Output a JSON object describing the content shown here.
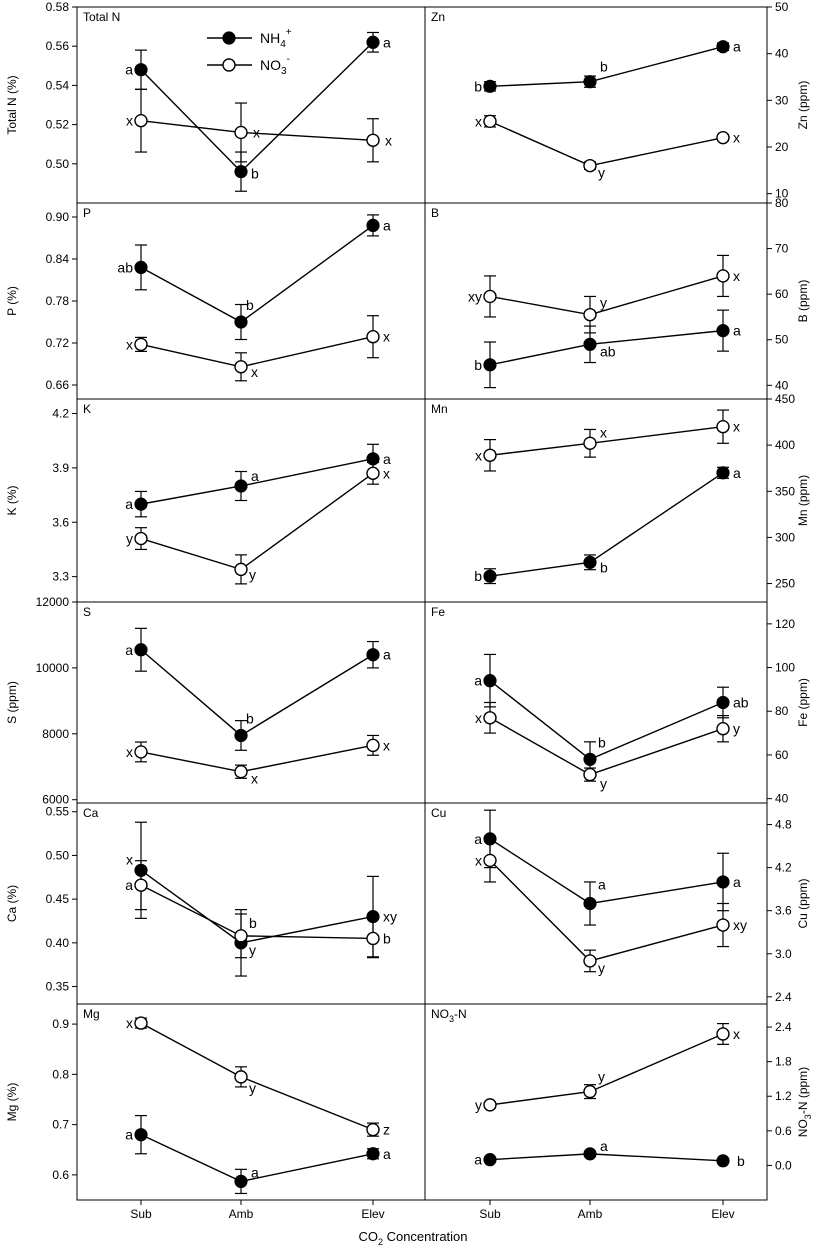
{
  "figure": {
    "xlabel_main": "CO",
    "xlabel_sub": "2",
    "xlabel_rest": " Concentration",
    "categories": [
      "Sub",
      "Amb",
      "Elev"
    ],
    "legend": {
      "nh4_base": "NH",
      "nh4_sub": "4",
      "nh4_sup": "+",
      "no3_base": "NO",
      "no3_sub": "3",
      "no3_sup": "-"
    }
  },
  "chart_data": [
    {
      "type": "line",
      "id": "totaln",
      "title": "Total N",
      "ylabel": "Total N (%)",
      "axis_side": "left",
      "ylim": [
        0.48,
        0.58
      ],
      "yticks": [
        "0.50",
        "0.52",
        "0.54",
        "0.56",
        "0.58"
      ],
      "categories": [
        "Sub",
        "Amb",
        "Elev"
      ],
      "series": [
        {
          "name": "NH4+",
          "marker": "filled",
          "values": [
            0.548,
            0.496,
            0.562
          ],
          "errors": [
            0.01,
            0.01,
            0.005
          ],
          "labels": [
            "a",
            "b",
            "a"
          ]
        },
        {
          "name": "NO3-",
          "marker": "open",
          "values": [
            0.522,
            0.516,
            0.512
          ],
          "errors": [
            0.016,
            0.015,
            0.011
          ],
          "labels": [
            "x",
            "x",
            "x"
          ]
        }
      ]
    },
    {
      "type": "line",
      "id": "zn",
      "title": "Zn",
      "ylabel": "Zn (ppm)",
      "axis_side": "right",
      "ylim": [
        8,
        50
      ],
      "yticks": [
        "10",
        "20",
        "30",
        "40",
        "50"
      ],
      "categories": [
        "Sub",
        "Amb",
        "Elev"
      ],
      "series": [
        {
          "name": "NH4+",
          "marker": "filled",
          "values": [
            33,
            34,
            41.5
          ],
          "errors": [
            1,
            1.2,
            0.8
          ],
          "labels": [
            "b",
            "b",
            "a"
          ]
        },
        {
          "name": "NO3-",
          "marker": "open",
          "values": [
            25.5,
            16,
            22
          ],
          "errors": [
            1.2,
            0.8,
            0.6
          ],
          "labels": [
            "x",
            "y",
            "x"
          ]
        }
      ]
    },
    {
      "type": "line",
      "id": "p",
      "title": "P",
      "ylabel": "P (%)",
      "axis_side": "left",
      "ylim": [
        0.64,
        0.92
      ],
      "yticks": [
        "0.66",
        "0.72",
        "0.78",
        "0.84",
        "0.90"
      ],
      "categories": [
        "Sub",
        "Amb",
        "Elev"
      ],
      "series": [
        {
          "name": "NH4+",
          "marker": "filled",
          "values": [
            0.828,
            0.75,
            0.888
          ],
          "errors": [
            0.032,
            0.025,
            0.015
          ],
          "labels": [
            "ab",
            "b",
            "a"
          ]
        },
        {
          "name": "NO3-",
          "marker": "open",
          "values": [
            0.718,
            0.686,
            0.729
          ],
          "errors": [
            0.01,
            0.02,
            0.03
          ],
          "labels": [
            "x",
            "x",
            "x"
          ]
        }
      ]
    },
    {
      "type": "line",
      "id": "b",
      "title": "B",
      "ylabel": "B (ppm)",
      "axis_side": "right",
      "ylim": [
        37,
        80
      ],
      "yticks": [
        "40",
        "50",
        "60",
        "70",
        "80"
      ],
      "categories": [
        "Sub",
        "Amb",
        "Elev"
      ],
      "series": [
        {
          "name": "NH4+",
          "marker": "filled",
          "values": [
            44.5,
            49,
            52
          ],
          "errors": [
            5,
            4,
            4.5
          ],
          "labels": [
            "b",
            "ab",
            "a"
          ]
        },
        {
          "name": "NO3-",
          "marker": "open",
          "values": [
            59.5,
            55.5,
            64
          ],
          "errors": [
            4.5,
            4,
            4.5
          ],
          "labels": [
            "xy",
            "y",
            "x"
          ]
        }
      ]
    },
    {
      "type": "line",
      "id": "k",
      "title": "K",
      "ylabel": "K (%)",
      "axis_side": "left",
      "ylim": [
        3.16,
        4.28
      ],
      "yticks": [
        "3.3",
        "3.6",
        "3.9",
        "4.2"
      ],
      "categories": [
        "Sub",
        "Amb",
        "Elev"
      ],
      "series": [
        {
          "name": "NH4+",
          "marker": "filled",
          "values": [
            3.7,
            3.8,
            3.95
          ],
          "errors": [
            0.07,
            0.08,
            0.08
          ],
          "labels": [
            "a",
            "a",
            "a"
          ]
        },
        {
          "name": "NO3-",
          "marker": "open",
          "values": [
            3.51,
            3.34,
            3.87
          ],
          "errors": [
            0.06,
            0.08,
            0.06
          ],
          "labels": [
            "y",
            "y",
            "x"
          ]
        }
      ]
    },
    {
      "type": "line",
      "id": "mn",
      "title": "Mn",
      "ylabel": "Mn (ppm)",
      "axis_side": "right",
      "ylim": [
        230,
        450
      ],
      "yticks": [
        "250",
        "300",
        "350",
        "400",
        "450"
      ],
      "categories": [
        "Sub",
        "Amb",
        "Elev"
      ],
      "series": [
        {
          "name": "NH4+",
          "marker": "filled",
          "values": [
            258,
            273,
            370
          ],
          "errors": [
            8,
            8,
            6
          ],
          "labels": [
            "b",
            "b",
            "a"
          ]
        },
        {
          "name": "NO3-",
          "marker": "open",
          "values": [
            389,
            402,
            420
          ],
          "errors": [
            17,
            15,
            18
          ],
          "labels": [
            "x",
            "x",
            "x"
          ]
        }
      ]
    },
    {
      "type": "line",
      "id": "s",
      "title": "S",
      "ylabel": "S (ppm)",
      "axis_side": "left",
      "ylim": [
        5900,
        12000
      ],
      "yticks": [
        "6000",
        "8000",
        "10000",
        "12000"
      ],
      "categories": [
        "Sub",
        "Amb",
        "Elev"
      ],
      "series": [
        {
          "name": "NH4+",
          "marker": "filled",
          "values": [
            10550,
            7950,
            10400
          ],
          "errors": [
            650,
            450,
            400
          ],
          "labels": [
            "a",
            "b",
            "a"
          ]
        },
        {
          "name": "NO3-",
          "marker": "open",
          "values": [
            7450,
            6850,
            7650
          ],
          "errors": [
            300,
            200,
            300
          ],
          "labels": [
            "x",
            "x",
            "x"
          ]
        }
      ]
    },
    {
      "type": "line",
      "id": "fe",
      "title": "Fe",
      "ylabel": "Fe (ppm)",
      "axis_side": "right",
      "ylim": [
        38,
        130
      ],
      "yticks": [
        "40",
        "60",
        "80",
        "100",
        "120"
      ],
      "categories": [
        "Sub",
        "Amb",
        "Elev"
      ],
      "series": [
        {
          "name": "NH4+",
          "marker": "filled",
          "values": [
            94,
            58,
            84
          ],
          "errors": [
            12,
            8,
            7
          ],
          "labels": [
            "a",
            "b",
            "ab"
          ]
        },
        {
          "name": "NO3-",
          "marker": "open",
          "values": [
            77,
            51,
            72
          ],
          "errors": [
            7,
            3,
            6
          ],
          "labels": [
            "x",
            "y",
            "y"
          ]
        }
      ]
    },
    {
      "type": "line",
      "id": "ca",
      "title": "Ca",
      "ylabel": "Ca (%)",
      "axis_side": "left",
      "ylim": [
        0.33,
        0.56
      ],
      "yticks": [
        "0.35",
        "0.40",
        "0.45",
        "0.50",
        "0.55"
      ],
      "categories": [
        "Sub",
        "Amb",
        "Elev"
      ],
      "series": [
        {
          "name": "NH4+",
          "marker": "filled",
          "values": [
            0.483,
            0.4,
            0.43
          ],
          "errors": [
            0.055,
            0.038,
            0.046
          ],
          "labels": [
            "x",
            "y",
            "xy"
          ]
        },
        {
          "name": "NO3-",
          "marker": "open",
          "values": [
            0.466,
            0.408,
            0.405
          ],
          "errors": [
            0.028,
            0.025,
            0.022
          ],
          "labels": [
            "a",
            "b",
            "b"
          ]
        }
      ]
    },
    {
      "type": "line",
      "id": "cu",
      "title": "Cu",
      "ylabel": "Cu (ppm)",
      "axis_side": "right",
      "ylim": [
        2.3,
        5.1
      ],
      "yticks": [
        "2.4",
        "3.0",
        "3.6",
        "4.2",
        "4.8"
      ],
      "categories": [
        "Sub",
        "Amb",
        "Elev"
      ],
      "series": [
        {
          "name": "NH4+",
          "marker": "filled",
          "values": [
            4.6,
            3.7,
            4.0
          ],
          "errors": [
            0.4,
            0.3,
            0.4
          ],
          "labels": [
            "a",
            "a",
            "a"
          ]
        },
        {
          "name": "NO3-",
          "marker": "open",
          "values": [
            4.3,
            2.9,
            3.4
          ],
          "errors": [
            0.3,
            0.15,
            0.3
          ],
          "labels": [
            "x",
            "y",
            "xy"
          ]
        }
      ]
    },
    {
      "type": "line",
      "id": "mg",
      "title": "Mg",
      "ylabel": "Mg (%)",
      "axis_side": "left",
      "ylim": [
        0.55,
        0.94
      ],
      "yticks": [
        "0.6",
        "0.7",
        "0.8",
        "0.9"
      ],
      "categories": [
        "Sub",
        "Amb",
        "Elev"
      ],
      "series": [
        {
          "name": "NH4+",
          "marker": "filled",
          "values": [
            0.68,
            0.587,
            0.642
          ],
          "errors": [
            0.038,
            0.024,
            0.01
          ],
          "labels": [
            "a",
            "a",
            "a"
          ]
        },
        {
          "name": "NO3-",
          "marker": "open",
          "values": [
            0.902,
            0.795,
            0.69
          ],
          "errors": [
            0.01,
            0.02,
            0.013
          ],
          "labels": [
            "x",
            "y",
            "z"
          ]
        }
      ]
    },
    {
      "type": "line",
      "id": "no3n",
      "title_base": "NO",
      "title_sub": "3",
      "title_rest": "-N",
      "ylabel_base": "NO",
      "ylabel_sub": "3",
      "ylabel_rest": "-N (ppm)",
      "axis_side": "right",
      "ylim": [
        -0.6,
        2.8
      ],
      "yticks": [
        "0.0",
        "0.6",
        "1.2",
        "1.8",
        "2.4"
      ],
      "categories": [
        "Sub",
        "Amb",
        "Elev"
      ],
      "series": [
        {
          "name": "NH4+",
          "marker": "filled",
          "values": [
            0.1,
            0.2,
            0.08
          ],
          "errors": [
            0.02,
            0.03,
            0.02
          ],
          "labels": [
            "a",
            "a",
            "b"
          ]
        },
        {
          "name": "NO3-",
          "marker": "open",
          "values": [
            1.05,
            1.28,
            2.28
          ],
          "errors": [
            0.05,
            0.12,
            0.18
          ],
          "labels": [
            "y",
            "y",
            "x"
          ]
        }
      ]
    }
  ]
}
